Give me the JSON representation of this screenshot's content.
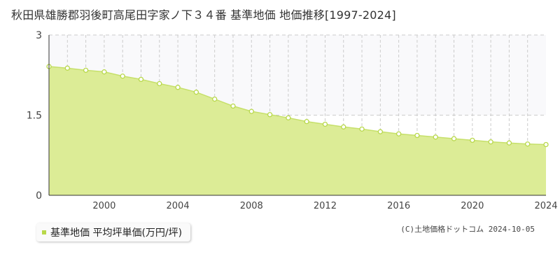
{
  "title": "秋田県雄勝郡羽後町高尾田字家ノ下３４番 基準地価 地価推移[1997-2024]",
  "legend": {
    "label": "基準地価 平均坪単価(万円/坪)"
  },
  "credit": "(C)土地価格ドットコム 2024-10-05",
  "colors": {
    "fill": "#dcec96",
    "line": "#c6e06a",
    "marker_stroke": "#b8d84a",
    "band": "#f9f9fb",
    "grid": "#cccccc"
  },
  "chart_data": {
    "type": "area",
    "x": [
      1997,
      1998,
      1999,
      2000,
      2001,
      2002,
      2003,
      2004,
      2005,
      2006,
      2007,
      2008,
      2009,
      2010,
      2011,
      2012,
      2013,
      2014,
      2015,
      2016,
      2017,
      2018,
      2019,
      2020,
      2021,
      2022,
      2023,
      2024
    ],
    "series": [
      {
        "name": "基準地価 平均坪単価(万円/坪)",
        "values": [
          2.41,
          2.38,
          2.34,
          2.31,
          2.23,
          2.17,
          2.09,
          2.02,
          1.93,
          1.8,
          1.67,
          1.57,
          1.51,
          1.45,
          1.38,
          1.33,
          1.28,
          1.24,
          1.19,
          1.15,
          1.12,
          1.09,
          1.06,
          1.03,
          1.0,
          0.98,
          0.96,
          0.95
        ]
      }
    ],
    "ylim": [
      0,
      3
    ],
    "yticks": [
      0,
      1.5,
      3
    ],
    "ytick_labels": [
      "0",
      "1.5",
      "3"
    ],
    "xlim": [
      1997,
      2024
    ],
    "xticks": [
      2000,
      2004,
      2008,
      2012,
      2016,
      2020,
      2024
    ],
    "xtick_labels": [
      "2000",
      "2004",
      "2008",
      "2012",
      "2016",
      "2020",
      "2024"
    ],
    "grid": true
  }
}
